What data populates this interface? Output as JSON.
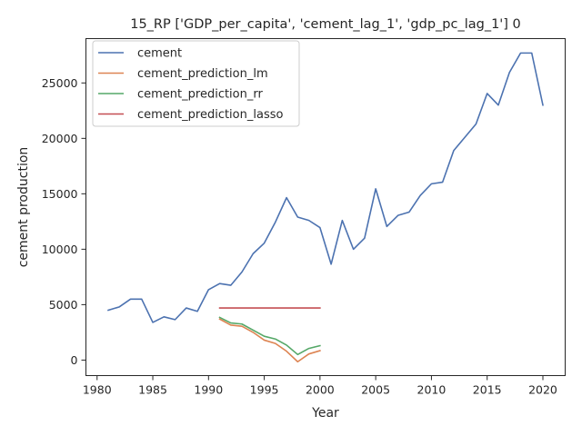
{
  "chart_data": {
    "type": "line",
    "title": "15_RP ['GDP_per_capita', 'cement_lag_1', 'gdp_pc_lag_1'] 0",
    "xlabel": "Year",
    "ylabel": "cement production",
    "xlim": [
      1979,
      2022
    ],
    "ylim": [
      -1400,
      29000
    ],
    "xticks": [
      1980,
      1985,
      1990,
      1995,
      2000,
      2005,
      2010,
      2015,
      2020
    ],
    "yticks": [
      0,
      5000,
      10000,
      15000,
      20000,
      25000
    ],
    "grid": false,
    "legend_position": "upper-left",
    "series": [
      {
        "name": "cement",
        "color": "#4c72b0",
        "x": [
          1981,
          1982,
          1983,
          1984,
          1985,
          1986,
          1987,
          1988,
          1989,
          1990,
          1991,
          1992,
          1993,
          1994,
          1995,
          1996,
          1997,
          1998,
          1999,
          2000,
          2001,
          2002,
          2003,
          2004,
          2005,
          2006,
          2007,
          2008,
          2009,
          2010,
          2011,
          2012,
          2013,
          2014,
          2015,
          2016,
          2017,
          2018,
          2019,
          2020
        ],
        "values": [
          4500,
          4800,
          5500,
          5500,
          3400,
          3900,
          3650,
          4700,
          4400,
          6350,
          6900,
          6750,
          7950,
          9600,
          10550,
          12450,
          14650,
          12900,
          12600,
          11950,
          8650,
          12600,
          10000,
          11000,
          15450,
          12050,
          13050,
          13350,
          14850,
          15900,
          16050,
          18900,
          20100,
          21300,
          24050,
          23000,
          25950,
          27700,
          27700,
          23000
        ]
      },
      {
        "name": "cement_prediction_lm",
        "color": "#dd8452",
        "x": [
          1991,
          1992,
          1993,
          1994,
          1995,
          1996,
          1997,
          1998,
          1999,
          2000
        ],
        "values": [
          3700,
          3150,
          3050,
          2500,
          1800,
          1500,
          800,
          -150,
          550,
          850
        ]
      },
      {
        "name": "cement_prediction_rr",
        "color": "#55a868",
        "x": [
          1991,
          1992,
          1993,
          1994,
          1995,
          1996,
          1997,
          1998,
          1999,
          2000
        ],
        "values": [
          3850,
          3350,
          3250,
          2700,
          2150,
          1900,
          1350,
          500,
          1050,
          1300
        ]
      },
      {
        "name": "cement_prediction_lasso",
        "color": "#c44e52",
        "x": [
          1991,
          1992,
          1993,
          1994,
          1995,
          1996,
          1997,
          1998,
          1999,
          2000
        ],
        "values": [
          4700,
          4700,
          4700,
          4700,
          4700,
          4700,
          4700,
          4700,
          4700,
          4700
        ]
      }
    ]
  }
}
